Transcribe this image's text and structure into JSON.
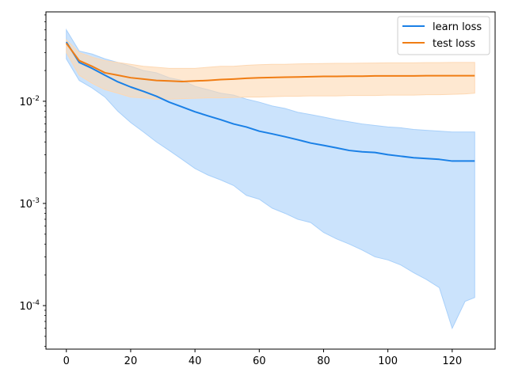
{
  "chart_data": {
    "type": "line",
    "title": "",
    "xlabel": "",
    "ylabel": "",
    "xlim": [
      -6.35,
      133.35
    ],
    "ylim": [
      3.75e-05,
      0.075
    ],
    "yscale": "log",
    "x_ticks": [
      0,
      20,
      40,
      60,
      80,
      100,
      120
    ],
    "x_tick_labels": [
      "0",
      "20",
      "40",
      "60",
      "80",
      "100",
      "120"
    ],
    "y_ticks": [
      0.0001,
      0.001,
      0.01
    ],
    "y_tick_labels": [
      "10^-4",
      "10^-3",
      "10^-2"
    ],
    "legend_position": "top-right",
    "grid": false,
    "x": [
      0,
      4,
      8,
      12,
      16,
      20,
      24,
      28,
      32,
      36,
      40,
      44,
      48,
      52,
      56,
      60,
      64,
      68,
      72,
      76,
      80,
      84,
      88,
      92,
      96,
      100,
      104,
      108,
      112,
      116,
      120,
      124,
      127
    ],
    "series": [
      {
        "name": "learn loss",
        "color": "#1a80e6",
        "band_color": "#a8d0fa",
        "values": [
          0.038,
          0.024,
          0.021,
          0.018,
          0.0155,
          0.0138,
          0.0125,
          0.0112,
          0.0098,
          0.0088,
          0.0079,
          0.0072,
          0.0066,
          0.006,
          0.0056,
          0.0051,
          0.0048,
          0.0045,
          0.0042,
          0.0039,
          0.0037,
          0.0035,
          0.0033,
          0.0032,
          0.00315,
          0.003,
          0.0029,
          0.0028,
          0.00275,
          0.0027,
          0.0026,
          0.0026,
          0.0026
        ],
        "lower": [
          0.026,
          0.016,
          0.0135,
          0.011,
          0.008,
          0.0062,
          0.005,
          0.004,
          0.0033,
          0.0027,
          0.0022,
          0.0019,
          0.0017,
          0.0015,
          0.0012,
          0.0011,
          0.0009,
          0.0008,
          0.0007,
          0.00065,
          0.00052,
          0.00045,
          0.0004,
          0.00035,
          0.0003,
          0.00028,
          0.00025,
          0.00021,
          0.00018,
          0.00015,
          6e-05,
          0.00011,
          0.00012
        ],
        "upper": [
          0.05,
          0.031,
          0.029,
          0.026,
          0.024,
          0.022,
          0.02,
          0.019,
          0.017,
          0.016,
          0.014,
          0.013,
          0.012,
          0.0115,
          0.0105,
          0.0098,
          0.009,
          0.0085,
          0.0078,
          0.0074,
          0.007,
          0.0066,
          0.0063,
          0.006,
          0.0058,
          0.0056,
          0.0055,
          0.0053,
          0.0052,
          0.0051,
          0.005,
          0.005,
          0.005
        ]
      },
      {
        "name": "test loss",
        "color": "#f07d14",
        "band_color": "#fdd8b3",
        "values": [
          0.037,
          0.025,
          0.022,
          0.019,
          0.018,
          0.017,
          0.0165,
          0.016,
          0.0158,
          0.0156,
          0.0158,
          0.016,
          0.0163,
          0.0165,
          0.0168,
          0.017,
          0.0171,
          0.0172,
          0.0173,
          0.0174,
          0.0175,
          0.0175,
          0.0176,
          0.0176,
          0.0177,
          0.0177,
          0.0177,
          0.0177,
          0.0178,
          0.0178,
          0.0178,
          0.0178,
          0.0178
        ],
        "lower": [
          0.03,
          0.018,
          0.015,
          0.013,
          0.012,
          0.011,
          0.0108,
          0.0105,
          0.0105,
          0.0106,
          0.0107,
          0.0108,
          0.0108,
          0.0109,
          0.011,
          0.011,
          0.0111,
          0.0112,
          0.0112,
          0.0113,
          0.0113,
          0.0113,
          0.0114,
          0.0114,
          0.0114,
          0.0115,
          0.0115,
          0.0115,
          0.0116,
          0.0116,
          0.0117,
          0.0118,
          0.012
        ],
        "upper": [
          0.04,
          0.03,
          0.027,
          0.025,
          0.024,
          0.023,
          0.022,
          0.0215,
          0.021,
          0.021,
          0.021,
          0.0215,
          0.022,
          0.022,
          0.0225,
          0.0228,
          0.023,
          0.023,
          0.0232,
          0.0233,
          0.0234,
          0.0235,
          0.0235,
          0.0236,
          0.0237,
          0.0238,
          0.0238,
          0.0238,
          0.0239,
          0.0239,
          0.024,
          0.024,
          0.024
        ]
      }
    ]
  }
}
